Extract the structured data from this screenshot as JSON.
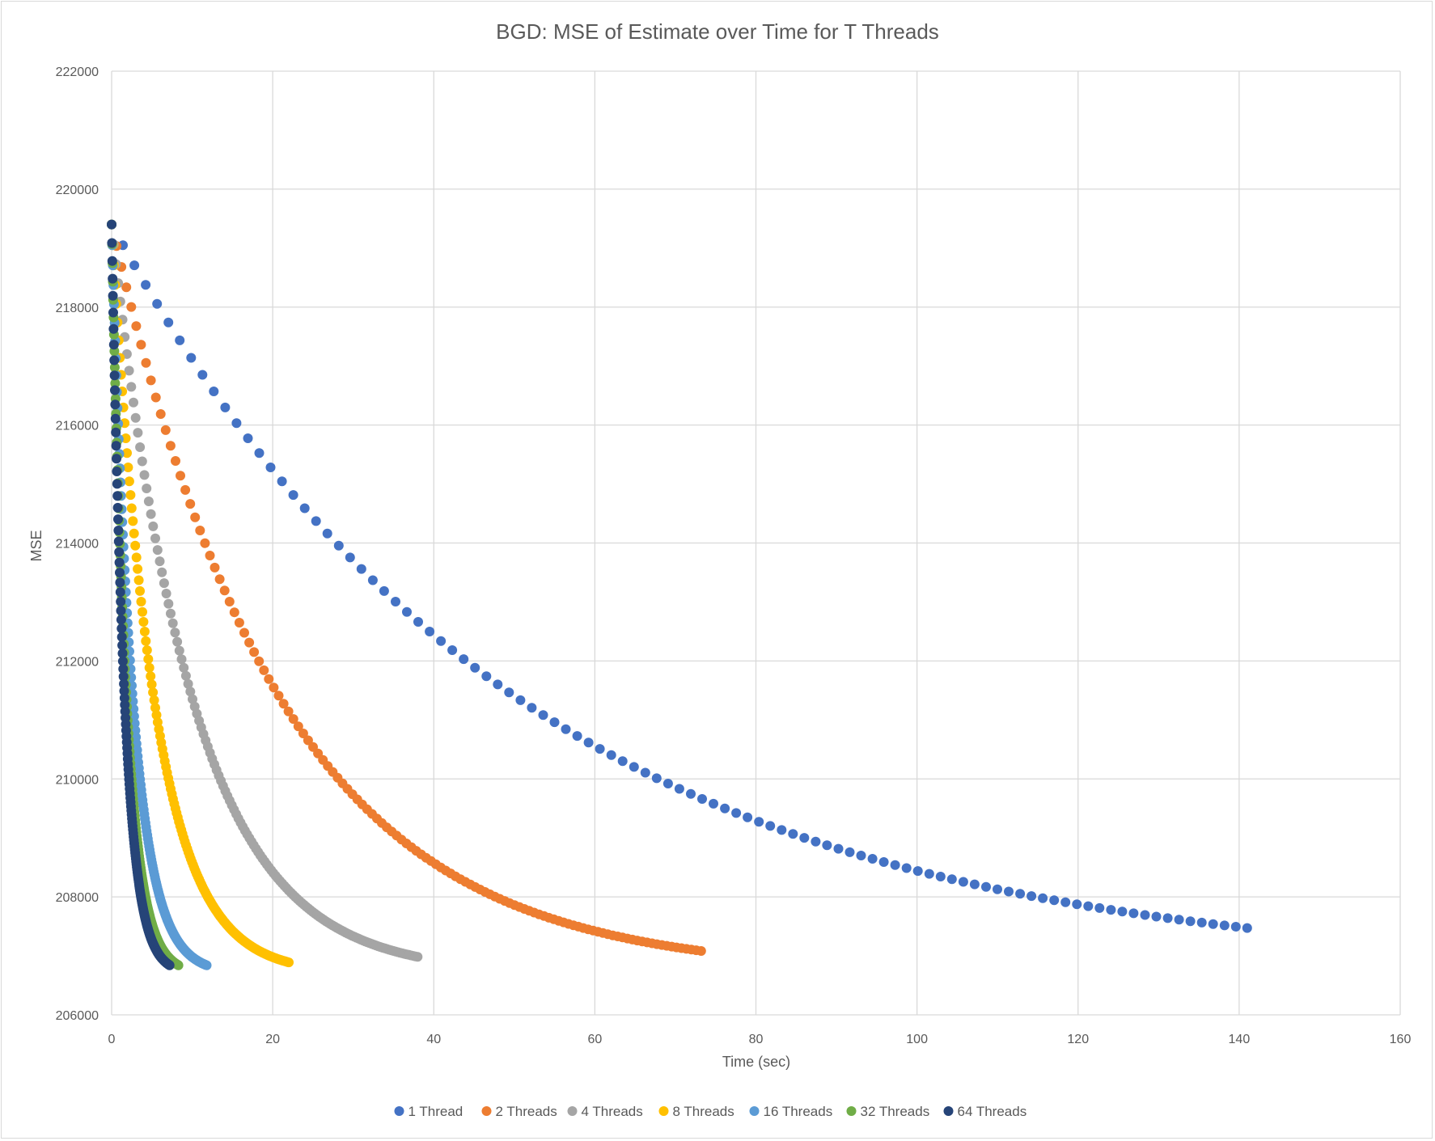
{
  "chart_data": {
    "type": "scatter",
    "title": "BGD: MSE of Estimate over Time for T Threads",
    "xlabel": "Time (sec)",
    "ylabel": "MSE",
    "xlim": [
      0,
      160
    ],
    "ylim": [
      206000,
      222000
    ],
    "x_ticks": [
      0,
      20,
      40,
      60,
      80,
      100,
      120,
      140,
      160
    ],
    "y_ticks": [
      206000,
      208000,
      210000,
      212000,
      214000,
      216000,
      218000,
      220000,
      222000
    ],
    "x_tick_labels": [
      "0",
      "20",
      "40",
      "60",
      "80",
      "100",
      "120",
      "140",
      "160"
    ],
    "y_tick_labels": [
      "206000",
      "208000",
      "210000",
      "212000",
      "214000",
      "216000",
      "218000",
      "220000",
      "222000"
    ],
    "grid": true,
    "legend_position": "bottom",
    "curve_model": "mse = 206700 + 12700 * exp(-k * i / N), i = 0..N, x = i * time_end / N",
    "mse_start": 219400,
    "mse_asymptote": 206700,
    "series": [
      {
        "name": "1 Thread",
        "color": "#4472c4",
        "time_end": 141,
        "points": 100,
        "decay": 2.8
      },
      {
        "name": "2 Threads",
        "color": "#ed7d31",
        "time_end": 73.2,
        "points": 120,
        "decay": 3.5
      },
      {
        "name": "4 Threads",
        "color": "#a5a5a5",
        "time_end": 38,
        "points": 140,
        "decay": 3.8
      },
      {
        "name": "8 Threads",
        "color": "#ffc000",
        "time_end": 22,
        "points": 150,
        "decay": 4.2
      },
      {
        "name": "16 Threads",
        "color": "#5b9bd5",
        "time_end": 11.8,
        "points": 160,
        "decay": 4.5
      },
      {
        "name": "32 Threads",
        "color": "#70ad47",
        "time_end": 8.3,
        "points": 170,
        "decay": 4.5
      },
      {
        "name": "64 Threads",
        "color": "#264478",
        "time_end": 7.2,
        "points": 180,
        "decay": 4.5
      }
    ]
  }
}
